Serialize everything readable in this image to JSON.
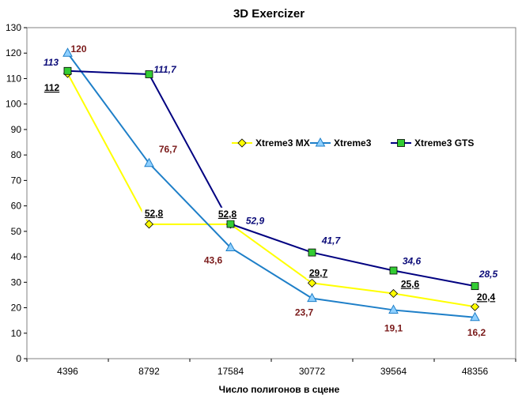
{
  "chart_data": {
    "type": "line",
    "title": "3D Exercizer",
    "xlabel": "Число полигонов в сцене",
    "ylabel": "",
    "categories": [
      "4396",
      "8792",
      "17584",
      "30772",
      "39564",
      "48356"
    ],
    "ylim": [
      0,
      130
    ],
    "yticks": [
      0,
      10,
      20,
      30,
      40,
      50,
      60,
      70,
      80,
      90,
      100,
      110,
      120,
      130
    ],
    "grid": false,
    "legend_position": "right",
    "series": [
      {
        "name": "Xtreme3 MX",
        "values": [
          112,
          52.8,
          52.8,
          29.7,
          25.6,
          20.4
        ],
        "labels": [
          "112",
          "52,8",
          "52,8",
          "29,7",
          "25,6",
          "20,4"
        ],
        "color": "#ffff00",
        "marker": "diamond",
        "marker_fill": "#ffff00"
      },
      {
        "name": "Xtreme3",
        "values": [
          120,
          76.7,
          43.6,
          23.7,
          19.1,
          16.2
        ],
        "labels": [
          "120",
          "76,7",
          "43,6",
          "23,7",
          "19,1",
          "16,2"
        ],
        "color": "#1e7fc8",
        "marker": "triangle",
        "marker_fill": "#8fd0ff"
      },
      {
        "name": "Xtreme3 GTS",
        "values": [
          113,
          111.7,
          52.9,
          41.7,
          34.6,
          28.5
        ],
        "labels": [
          "113",
          "111,7",
          "52,9",
          "41,7",
          "34,6",
          "28,5"
        ],
        "color": "#000080",
        "marker": "square",
        "marker_fill": "#33cc33"
      }
    ]
  }
}
